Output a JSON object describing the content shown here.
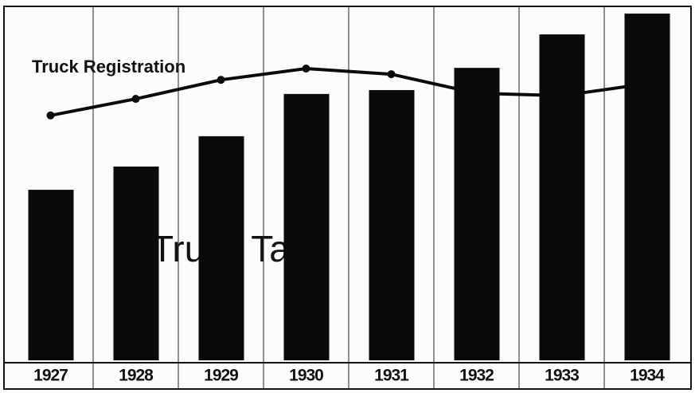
{
  "chart_data": {
    "type": "bar_line",
    "categories": [
      "1927",
      "1928",
      "1929",
      "1930",
      "1931",
      "1932",
      "1933",
      "1934"
    ],
    "series": [
      {
        "name": "Truck Tax",
        "color": "#0a0a0a",
        "values": [
          48.4,
          55,
          63.6,
          75.6,
          76.7,
          83,
          92.5,
          98.4
        ]
      },
      {
        "name": "Truck Registration",
        "color": "#0a0a0a",
        "values": [
          69.5,
          74.2,
          79.6,
          82.8,
          81.2,
          75.8,
          75.1,
          78.5
        ]
      }
    ],
    "ylim": [
      0,
      100
    ]
  }
}
